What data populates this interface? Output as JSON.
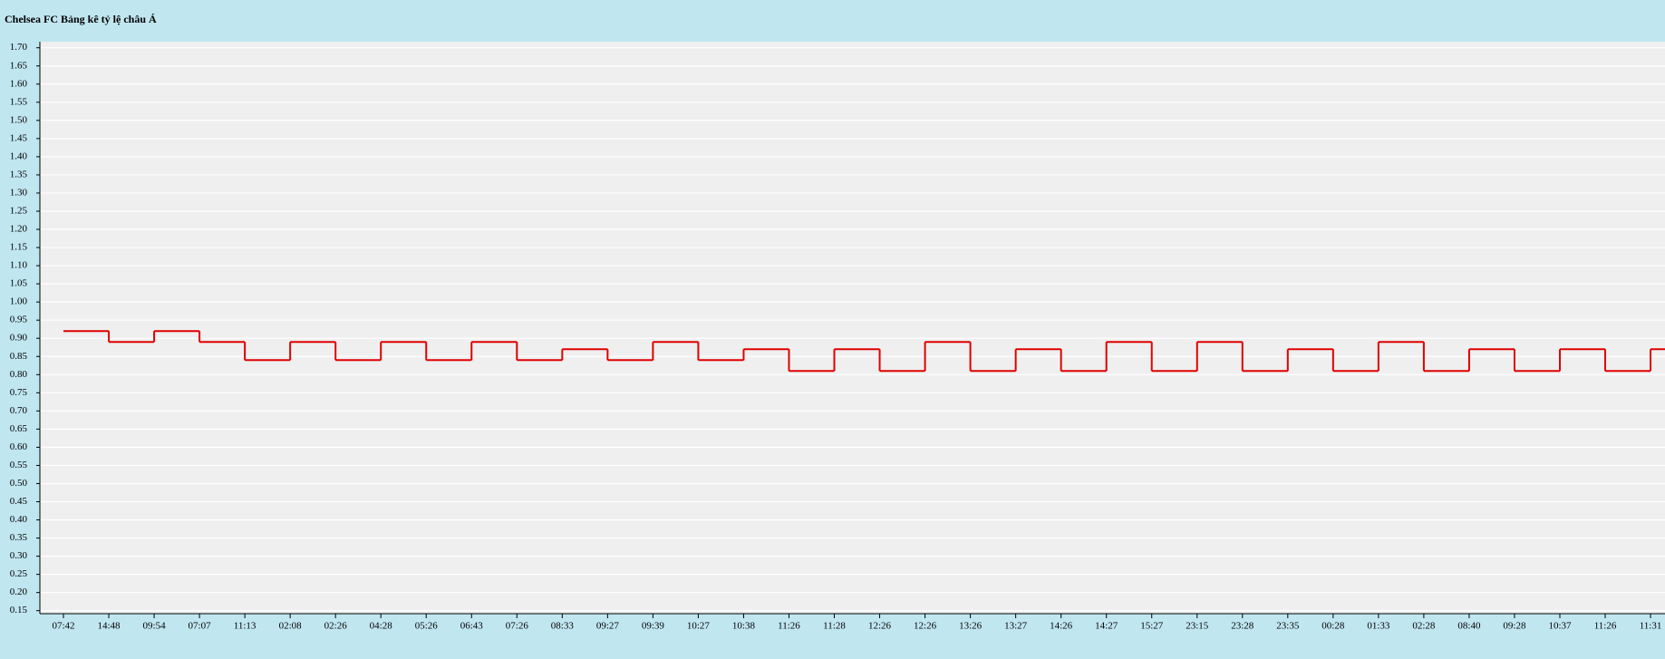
{
  "chart_data": {
    "type": "step",
    "title": "Chelsea FC Bảng kê tỷ lệ châu Á",
    "categories": [
      "07:42",
      "14:48",
      "09:54",
      "07:07",
      "11:13",
      "02:08",
      "02:26",
      "04:28",
      "05:26",
      "06:43",
      "07:26",
      "08:33",
      "09:27",
      "09:39",
      "10:27",
      "10:38",
      "11:26",
      "11:28",
      "12:26",
      "12:26",
      "13:26",
      "13:27",
      "14:26",
      "14:27",
      "15:27",
      "23:15",
      "23:28",
      "23:35",
      "00:28",
      "01:33",
      "02:28",
      "08:40",
      "09:28",
      "10:37",
      "11:26",
      "11:31"
    ],
    "series": [
      {
        "color": "#e00000",
        "values": [
          0.92,
          0.89,
          0.92,
          0.89,
          0.84,
          0.89,
          0.84,
          0.89,
          0.84,
          0.89,
          0.84,
          0.87,
          0.84,
          0.89,
          0.84,
          0.87,
          0.81,
          0.87,
          0.81,
          0.89,
          0.81,
          0.87,
          0.81,
          0.89,
          0.81,
          0.89,
          0.81,
          0.87,
          0.81,
          0.89,
          0.81,
          0.87,
          0.81,
          0.87,
          0.81,
          0.87
        ]
      }
    ],
    "ylim": [
      0.15,
      1.7
    ],
    "yticks": [
      0.15,
      {
        "value": 0.2,
        "label": "0.20"
      },
      0.25,
      {
        "value": 0.3,
        "label": "0.30"
      },
      0.35,
      {
        "value": 0.4,
        "label": "0.40"
      },
      0.45,
      {
        "value": 0.5,
        "label": "0.50"
      },
      0.55,
      {
        "value": 0.6,
        "label": "0.60"
      },
      0.65,
      {
        "value": 0.7,
        "label": "0.70"
      },
      0.75,
      {
        "value": 0.8,
        "label": "0.80"
      },
      0.85,
      {
        "value": 0.9,
        "label": "0.90"
      },
      0.95,
      {
        "value": 1.0,
        "label": "1.00"
      },
      1.05,
      {
        "value": 1.1,
        "label": "1.10"
      },
      1.15,
      {
        "value": 1.2,
        "label": "1.20"
      },
      1.25,
      {
        "value": 1.3,
        "label": "1.30"
      },
      1.35,
      {
        "value": 1.4,
        "label": "1.40"
      },
      1.45,
      {
        "value": 1.5,
        "label": "1.50"
      },
      1.55,
      {
        "value": 1.6,
        "label": "1.60"
      },
      1.65,
      {
        "value": 1.7,
        "label": "1.70"
      }
    ],
    "grid": true
  }
}
